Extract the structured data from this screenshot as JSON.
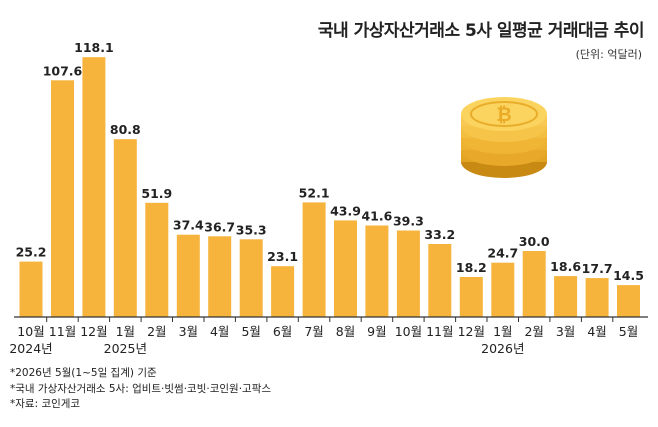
{
  "title": "국내 가상자산거래소 5사 일평균 거래대금 추이",
  "unit": "(단위: 억달러)",
  "footnotes": [
    "*2026년 5월(1~5일 집계) 기준",
    "*국내 가상자산거래소 5사: 업비트·빗썸·코빗·코인원·고팍스",
    "*자료: 코인게코"
  ],
  "colors": {
    "bar": "#f6b43c",
    "axis": "#333333",
    "coin": "#f3b42a"
  },
  "decoration": {
    "icon": "bitcoin-coin-stack-icon"
  },
  "chart_data": {
    "type": "bar",
    "categories": [
      "10월",
      "11월",
      "12월",
      "1월",
      "2월",
      "3월",
      "4월",
      "5월",
      "6월",
      "7월",
      "8월",
      "9월",
      "10월",
      "11월",
      "12월",
      "1월",
      "2월",
      "3월",
      "4월",
      "5월"
    ],
    "year_labels": [
      {
        "index": 0,
        "text": "2024년"
      },
      {
        "index": 3,
        "text": "2025년"
      },
      {
        "index": 15,
        "text": "2026년"
      }
    ],
    "values": [
      25.2,
      107.6,
      118.1,
      80.8,
      51.9,
      37.4,
      36.7,
      35.3,
      23.1,
      52.1,
      43.9,
      41.6,
      39.3,
      33.2,
      18.2,
      24.7,
      30.0,
      18.6,
      17.7,
      14.5
    ],
    "value_labels": [
      "25.2",
      "107.6",
      "118.1",
      "80.8",
      "51.9",
      "37.4",
      "36.7",
      "35.3",
      "23.1",
      "52.1",
      "43.9",
      "41.6",
      "39.3",
      "33.2",
      "18.2",
      "24.7",
      "30.0",
      "18.6",
      "17.7",
      "14.5"
    ],
    "ylim": [
      0,
      120
    ],
    "grid": false,
    "legend": "none"
  }
}
